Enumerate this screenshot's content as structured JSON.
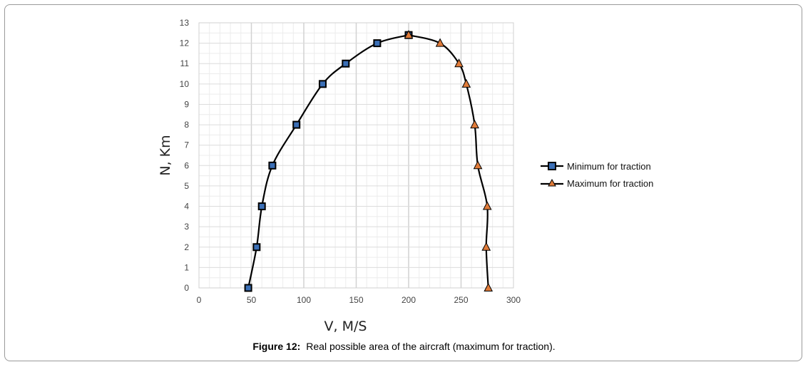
{
  "caption": {
    "label": "Figure 12:",
    "text": "Real possible area of the aircraft (maximum for traction)."
  },
  "chart_data": {
    "type": "line",
    "title": "",
    "xlabel": "V, M/S",
    "ylabel": "N, Km",
    "xlim": [
      0,
      300
    ],
    "ylim": [
      0,
      13
    ],
    "x_ticks": [
      0,
      50,
      100,
      150,
      200,
      250,
      300
    ],
    "y_ticks": [
      0,
      1,
      2,
      3,
      4,
      5,
      6,
      7,
      8,
      9,
      10,
      11,
      12,
      13
    ],
    "x_tick_labels": [
      "0",
      "50",
      "100",
      "150",
      "200",
      "250",
      "300"
    ],
    "y_tick_labels": [
      "0",
      "1",
      "2",
      "3",
      "4",
      "5",
      "6",
      "7",
      "8",
      "9",
      "10",
      "11",
      "12",
      "13"
    ],
    "grid": true,
    "legend_position": "right",
    "series": [
      {
        "name": "Minimum for traction",
        "marker": "square",
        "marker_color": "#3b6fb6",
        "line_color": "#000000",
        "x": [
          47,
          55,
          60,
          70,
          93,
          118,
          140,
          170,
          200
        ],
        "y": [
          0,
          2,
          4,
          6,
          8,
          10,
          11,
          12,
          12.4
        ]
      },
      {
        "name": "Maximum for traction",
        "marker": "triangle",
        "marker_color": "#e07b39",
        "line_color": "#000000",
        "x": [
          200,
          230,
          248,
          255,
          263,
          266,
          275,
          274,
          276
        ],
        "y": [
          12.4,
          12,
          11,
          10,
          8,
          6,
          4,
          2,
          0
        ]
      }
    ]
  }
}
